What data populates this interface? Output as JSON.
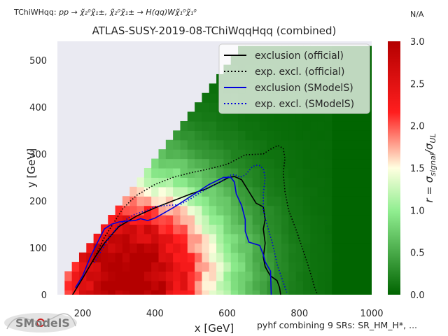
{
  "header": {
    "process_left": "TChiWHqq: ",
    "process_math": "pp → χ̃₂⁰χ̃₁±, χ̃₂⁰χ̃₁± → H(qq)Wχ̃₁⁰χ̃₁⁰",
    "na_label": "N/A"
  },
  "footer": {
    "combination_note": "pyhf combining 9 SRs: SR_HM_H*, ...",
    "logo_text": "SModelS"
  },
  "colors": {
    "plot_background": "#eaeaf2",
    "official_line": "#000000",
    "smodels_line": "#0000dd",
    "cmap_low": "#006400",
    "cmap_mid": "#ffffe0",
    "cmap_high": "#b40000"
  },
  "chart_data": {
    "type": "heatmap",
    "title": "ATLAS-SUSY-2019-08-TChiWqqHqq (combined)",
    "xlabel": "x [GeV]",
    "ylabel": "y [GeV]",
    "xlim": [
      130,
      1000
    ],
    "ylim": [
      0,
      540
    ],
    "xticks": [
      200,
      400,
      600,
      800,
      1000
    ],
    "yticks": [
      0,
      100,
      200,
      300,
      400,
      500
    ],
    "grid": false,
    "legend_position": "top-right",
    "colorbar": {
      "label": "r = σ_signal/σ_UL",
      "range": [
        0.0,
        3.0
      ],
      "ticks": [
        0.0,
        0.5,
        1.0,
        1.5,
        2.0,
        2.5,
        3.0
      ]
    },
    "heatmap_description": "r-value grid over the region y < x - 125 GeV",
    "series": [
      {
        "name": "exclusion (official)",
        "style": "solid",
        "color": "#000000",
        "x": [
          172,
          200,
          230,
          260,
          300,
          350,
          400,
          450,
          500,
          540,
          580,
          605,
          620,
          640,
          660,
          680,
          700,
          705,
          700,
          705,
          700,
          705,
          712,
          720,
          738,
          745,
          748
        ],
        "y": [
          0,
          35,
          75,
          110,
          145,
          168,
          185,
          200,
          215,
          225,
          240,
          250,
          252,
          245,
          220,
          195,
          187,
          160,
          140,
          110,
          80,
          60,
          50,
          40,
          30,
          15,
          0
        ]
      },
      {
        "name": "exp. excl. (official)",
        "style": "dotted",
        "color": "#000000",
        "x": [
          228,
          240,
          260,
          290,
          310,
          330,
          350,
          400,
          450,
          500,
          550,
          600,
          650,
          700,
          720,
          740,
          755,
          760,
          755,
          760,
          770,
          790,
          810,
          825,
          835,
          842,
          850
        ],
        "y": [
          70,
          90,
          122,
          158,
          182,
          198,
          212,
          235,
          250,
          260,
          268,
          278,
          298,
          300,
          310,
          318,
          312,
          290,
          260,
          220,
          180,
          140,
          95,
          60,
          35,
          15,
          0
        ]
      },
      {
        "name": "exclusion (SModelS)",
        "style": "solid",
        "color": "#0000dd",
        "x": [
          180,
          200,
          220,
          240,
          260,
          280,
          300,
          320,
          345,
          360,
          380,
          400,
          450,
          500,
          550,
          590,
          610,
          620,
          625,
          640,
          650,
          650,
          660,
          690,
          700,
          705,
          720,
          722
        ],
        "y": [
          15,
          40,
          78,
          110,
          140,
          150,
          155,
          157,
          158,
          162,
          158,
          163,
          185,
          210,
          235,
          250,
          250,
          240,
          215,
          190,
          160,
          135,
          112,
          105,
          85,
          70,
          50,
          0
        ]
      },
      {
        "name": "exp. excl. (SModelS)",
        "style": "dotted",
        "color": "#0000dd",
        "x": [
          232,
          240,
          255,
          270,
          300,
          320,
          340,
          380,
          400,
          430,
          470,
          500,
          530,
          560,
          580,
          600,
          610,
          622,
          635,
          650,
          670,
          680,
          690,
          700,
          705,
          700,
          700,
          710,
          725,
          740,
          765
        ],
        "y": [
          68,
          78,
          98,
          118,
          148,
          160,
          170,
          180,
          188,
          190,
          192,
          205,
          220,
          232,
          240,
          250,
          255,
          256,
          250,
          255,
          273,
          276,
          275,
          268,
          250,
          215,
          180,
          150,
          110,
          60,
          5
        ]
      }
    ]
  }
}
